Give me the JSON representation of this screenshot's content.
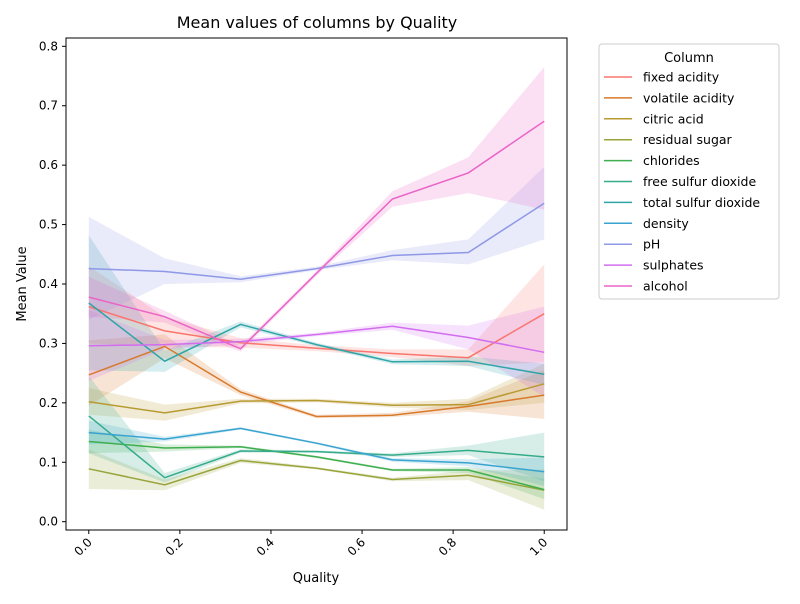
{
  "chart_data": {
    "type": "line",
    "title": "Mean values of columns by Quality",
    "xlabel": "Quality",
    "ylabel": "Mean Value",
    "xlim": [
      -0.05,
      1.05
    ],
    "ylim": [
      -0.014,
      0.814
    ],
    "x_ticks": [
      "0.0",
      "0.2",
      "0.4",
      "0.6",
      "0.8",
      "1.0"
    ],
    "y_ticks": [
      "0.0",
      "0.1",
      "0.2",
      "0.3",
      "0.4",
      "0.5",
      "0.6",
      "0.7",
      "0.8"
    ],
    "grid": false,
    "legend_title": "Column",
    "legend_position": "outside-right",
    "x": [
      0.0,
      0.1667,
      0.3333,
      0.5,
      0.6667,
      0.8333,
      1.0
    ],
    "series": [
      {
        "name": "fixed acidity",
        "color": "#f8766d",
        "values": [
          0.362,
          0.321,
          0.301,
          0.292,
          0.283,
          0.276,
          0.35
        ],
        "lower": [
          0.3,
          0.295,
          0.293,
          0.287,
          0.277,
          0.262,
          0.268
        ],
        "upper": [
          0.43,
          0.345,
          0.309,
          0.297,
          0.29,
          0.29,
          0.433
        ]
      },
      {
        "name": "volatile acidity",
        "color": "#d87a2b",
        "values": [
          0.247,
          0.295,
          0.218,
          0.177,
          0.179,
          0.194,
          0.213
        ],
        "lower": [
          0.195,
          0.275,
          0.213,
          0.174,
          0.176,
          0.185,
          0.173
        ],
        "upper": [
          0.305,
          0.315,
          0.223,
          0.18,
          0.183,
          0.203,
          0.255
        ]
      },
      {
        "name": "citric acid",
        "color": "#b89a32",
        "values": [
          0.202,
          0.183,
          0.203,
          0.204,
          0.196,
          0.197,
          0.232
        ],
        "lower": [
          0.18,
          0.17,
          0.199,
          0.201,
          0.192,
          0.188,
          0.2
        ],
        "upper": [
          0.225,
          0.197,
          0.207,
          0.207,
          0.2,
          0.207,
          0.266
        ]
      },
      {
        "name": "residual sugar",
        "color": "#98a43a",
        "values": [
          0.089,
          0.062,
          0.103,
          0.09,
          0.071,
          0.078,
          0.053
        ],
        "lower": [
          0.055,
          0.053,
          0.099,
          0.088,
          0.068,
          0.07,
          0.02
        ],
        "upper": [
          0.122,
          0.071,
          0.107,
          0.092,
          0.074,
          0.086,
          0.088
        ]
      },
      {
        "name": "chlorides",
        "color": "#3fae4e",
        "values": [
          0.135,
          0.124,
          0.126,
          0.109,
          0.087,
          0.087,
          0.054
        ],
        "lower": [
          0.115,
          0.118,
          0.124,
          0.107,
          0.085,
          0.082,
          0.038
        ],
        "upper": [
          0.155,
          0.13,
          0.128,
          0.111,
          0.089,
          0.092,
          0.072
        ]
      },
      {
        "name": "free sulfur dioxide",
        "color": "#35ab8a",
        "values": [
          0.178,
          0.074,
          0.119,
          0.118,
          0.112,
          0.12,
          0.109
        ],
        "lower": [
          0.115,
          0.066,
          0.116,
          0.116,
          0.109,
          0.112,
          0.068
        ],
        "upper": [
          0.245,
          0.082,
          0.122,
          0.12,
          0.115,
          0.128,
          0.15
        ]
      },
      {
        "name": "total sulfur dioxide",
        "color": "#2fa5a8",
        "values": [
          0.368,
          0.27,
          0.332,
          0.298,
          0.269,
          0.27,
          0.248
        ],
        "lower": [
          0.255,
          0.252,
          0.327,
          0.295,
          0.265,
          0.262,
          0.23
        ],
        "upper": [
          0.482,
          0.288,
          0.337,
          0.301,
          0.273,
          0.278,
          0.266
        ]
      },
      {
        "name": "density",
        "color": "#38a3cf",
        "values": [
          0.15,
          0.139,
          0.157,
          0.132,
          0.104,
          0.099,
          0.084
        ],
        "lower": [
          0.13,
          0.135,
          0.155,
          0.13,
          0.101,
          0.093,
          0.06
        ],
        "upper": [
          0.17,
          0.143,
          0.159,
          0.134,
          0.107,
          0.105,
          0.108
        ]
      },
      {
        "name": "pH",
        "color": "#8f98e6",
        "values": [
          0.426,
          0.421,
          0.408,
          0.426,
          0.448,
          0.453,
          0.536
        ],
        "lower": [
          0.34,
          0.4,
          0.403,
          0.423,
          0.44,
          0.433,
          0.475
        ],
        "upper": [
          0.513,
          0.443,
          0.413,
          0.429,
          0.457,
          0.475,
          0.597
        ]
      },
      {
        "name": "sulphates",
        "color": "#d26df0",
        "values": [
          0.296,
          0.298,
          0.303,
          0.315,
          0.329,
          0.31,
          0.285
        ],
        "lower": [
          0.237,
          0.29,
          0.298,
          0.312,
          0.323,
          0.29,
          0.21
        ],
        "upper": [
          0.356,
          0.306,
          0.308,
          0.318,
          0.335,
          0.33,
          0.362
        ]
      },
      {
        "name": "alcohol",
        "color": "#ea63c6",
        "values": [
          0.378,
          0.345,
          0.291,
          0.418,
          0.543,
          0.587,
          0.674
        ],
        "lower": [
          0.345,
          0.335,
          0.286,
          0.414,
          0.53,
          0.553,
          0.525
        ],
        "upper": [
          0.412,
          0.355,
          0.296,
          0.422,
          0.556,
          0.613,
          0.765
        ]
      }
    ]
  }
}
